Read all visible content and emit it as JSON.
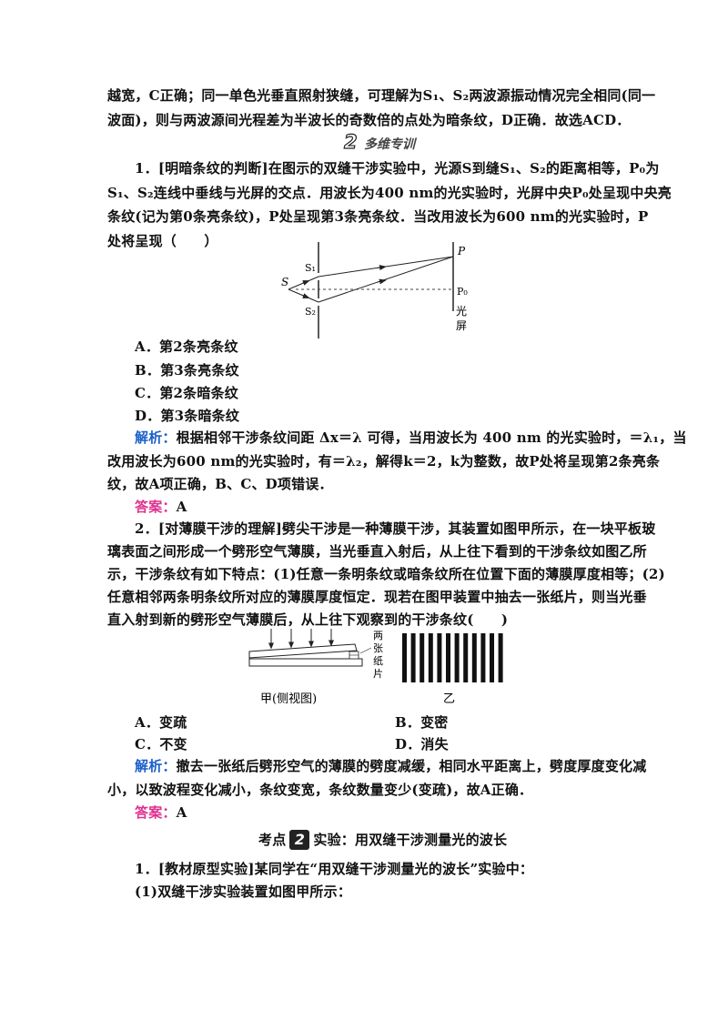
{
  "intro": {
    "line1": "越宽，C正确；同一单色光垂直照射狭缝，可理解为S₁、S₂两波源振动情况完全相同(同一",
    "line2": "波面)，则与两波源间光程差为半波长的奇数倍的点处为暗条纹，D正确．故选ACD．"
  },
  "section": {
    "num": "2",
    "title": "多维专训"
  },
  "q1": {
    "line1": "1．[明暗条纹的判断]在图示的双缝干涉实验中，光源S到缝S₁、S₂的距离相等，P₀为",
    "line2": "S₁、S₂连线中垂线与光屏的交点．用波长为400 nm的光实验时，光屏中央P₀处呈现中央亮",
    "line3": "条纹(记为第0条亮条纹)，P处呈现第3条亮条纹．当改用波长为600 nm的光实验时，P",
    "line4": "处将呈现（　　）",
    "fig": {
      "S": "S",
      "S1": "S₁",
      "S2": "S₂",
      "P": "P",
      "P0": "P₀",
      "screen1": "光",
      "screen2": "屏"
    },
    "options": [
      "A．第2条亮条纹",
      "B．第3条亮条纹",
      "C．第2条暗条纹",
      "D．第3条暗条纹"
    ],
    "explain_label": "解析：",
    "explain1": "根据相邻干涉条纹间距 Δx＝λ 可得，当用波长为 400 nm 的光实验时，＝λ₁，当",
    "explain2": "改用波长为600 nm的光实验时，有＝λ₂，解得k＝2，k为整数，故P处将呈现第2条亮条",
    "explain3": "纹，故A项正确，B、C、D项错误．",
    "answer_label": "答案：",
    "answer": "A"
  },
  "q2": {
    "line1": "2．[对薄膜干涉的理解]劈尖干涉是一种薄膜干涉，其装置如图甲所示，在一块平板玻",
    "line2": "璃表面之间形成一个劈形空气薄膜，当光垂直入射后，从上往下看到的干涉条纹如图乙所",
    "line3": "示，干涉条纹有如下特点：(1)任意一条明条纹或暗条纹所在位置下面的薄膜厚度相等；(2)",
    "line4": "任意相邻两条明条纹所对应的薄膜厚度恒定．现若在图甲装置中抽去一张纸片，则当光垂",
    "line5": "直入射到新的劈形空气薄膜后，从上往下观察到的干涉条纹(　　)",
    "fig": {
      "side_label1": "两",
      "side_label2": "张",
      "side_label3": "纸",
      "side_label4": "片",
      "cap_a": "甲(侧视图)",
      "cap_b": "乙",
      "stripes": 12
    },
    "options": [
      "A．变疏",
      "B．变密",
      "C．不变",
      "D．消失"
    ],
    "explain_label": "解析：",
    "explain1": "撤去一张纸后劈形空气的薄膜的劈度减缓，相同水平距离上，劈度厚度变化减",
    "explain2": "小，以致波程变化减小，条纹变宽，条纹数量变少(变疏)，故A正确．",
    "answer_label": "答案：",
    "answer": "A"
  },
  "kaodian": {
    "prefix": "考点",
    "num": "2",
    "title": "实验：用双缝干涉测量光的波长"
  },
  "q3": {
    "line1": "1．[教材原型实验]某同学在“用双缝干涉测量光的波长”实验中：",
    "line2": "(1)双缝干涉实验装置如图甲所示："
  }
}
